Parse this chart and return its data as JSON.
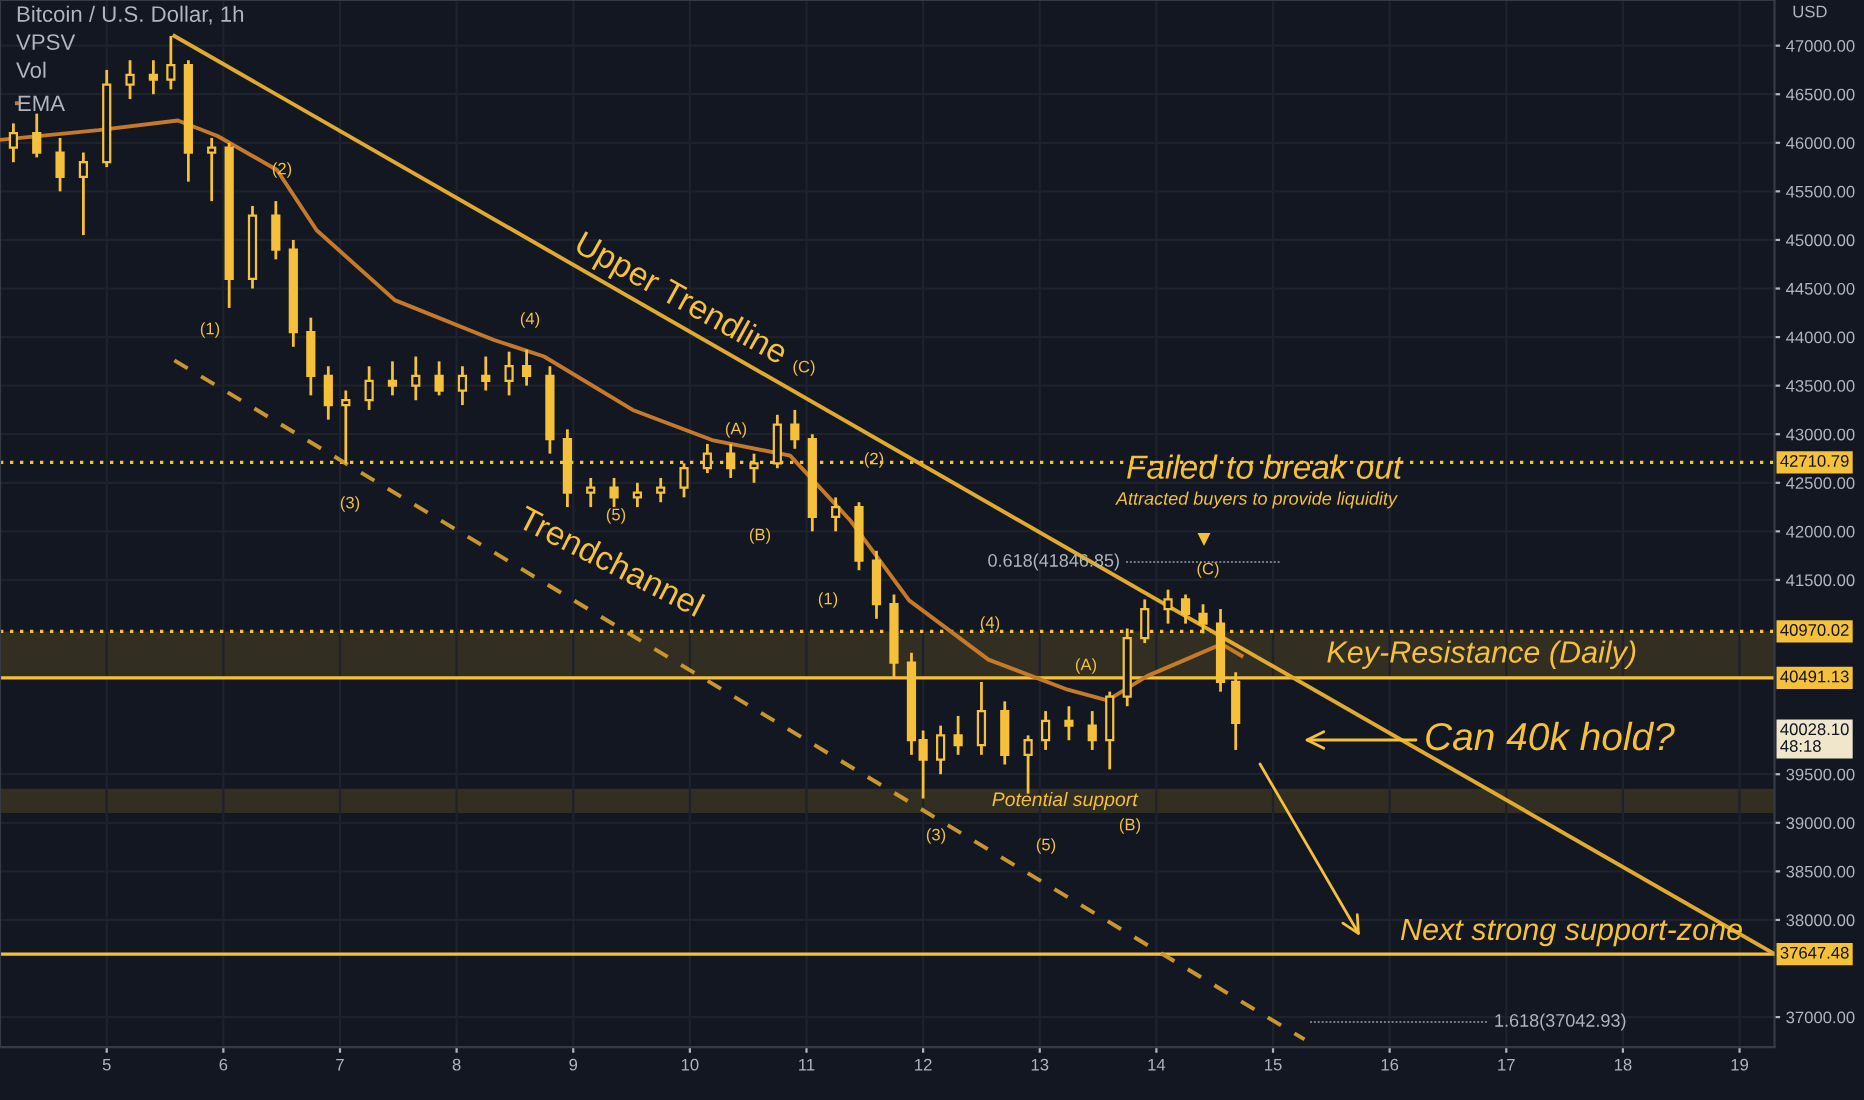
{
  "chart_data": {
    "type": "candlestick",
    "title": "Bitcoin / U.S. Dollar, 1h",
    "ylabel": "USD",
    "x": [
      4.2,
      4.4,
      4.6,
      4.8,
      5.0,
      5.2,
      5.4,
      5.55,
      5.7,
      5.9,
      6.05,
      6.25,
      6.45,
      6.6,
      6.75,
      6.9,
      7.05,
      7.25,
      7.45,
      7.65,
      7.85,
      8.05,
      8.25,
      8.45,
      8.6,
      8.8,
      8.95,
      9.15,
      9.35,
      9.55,
      9.75,
      9.95,
      10.15,
      10.35,
      10.55,
      10.75,
      10.9,
      11.05,
      11.25,
      11.45,
      11.6,
      11.75,
      11.9,
      12.0,
      12.15,
      12.3,
      12.5,
      12.7,
      12.9,
      13.05,
      13.25,
      13.45,
      13.6,
      13.75,
      13.9,
      14.1,
      14.25,
      14.4,
      14.55,
      14.68
    ],
    "ohlc": [
      [
        45950,
        46200,
        45800,
        46100
      ],
      [
        46100,
        46300,
        45850,
        45900
      ],
      [
        45900,
        46050,
        45500,
        45650
      ],
      [
        45650,
        45900,
        45050,
        45800
      ],
      [
        45800,
        46750,
        45750,
        46600
      ],
      [
        46600,
        46850,
        46450,
        46700
      ],
      [
        46700,
        46850,
        46500,
        46650
      ],
      [
        46650,
        47100,
        46550,
        46800
      ],
      [
        46800,
        46850,
        45600,
        45900
      ],
      [
        45900,
        46050,
        45400,
        45950
      ],
      [
        45950,
        46000,
        44300,
        44600
      ],
      [
        44600,
        45350,
        44500,
        45250
      ],
      [
        45250,
        45400,
        44800,
        44900
      ],
      [
        44900,
        45000,
        43900,
        44050
      ],
      [
        44050,
        44200,
        43400,
        43600
      ],
      [
        43600,
        43700,
        43150,
        43300
      ],
      [
        43300,
        43450,
        42700,
        43350
      ],
      [
        43350,
        43700,
        43250,
        43550
      ],
      [
        43550,
        43750,
        43400,
        43500
      ],
      [
        43500,
        43800,
        43350,
        43600
      ],
      [
        43600,
        43750,
        43400,
        43450
      ],
      [
        43450,
        43700,
        43300,
        43600
      ],
      [
        43600,
        43800,
        43450,
        43550
      ],
      [
        43550,
        43850,
        43400,
        43700
      ],
      [
        43700,
        43870,
        43500,
        43600
      ],
      [
        43600,
        43700,
        42800,
        42950
      ],
      [
        42950,
        43050,
        42250,
        42400
      ],
      [
        42400,
        42550,
        42250,
        42450
      ],
      [
        42450,
        42550,
        42250,
        42350
      ],
      [
        42350,
        42500,
        42250,
        42400
      ],
      [
        42400,
        42550,
        42300,
        42450
      ],
      [
        42450,
        42700,
        42350,
        42650
      ],
      [
        42650,
        42900,
        42600,
        42800
      ],
      [
        42800,
        42900,
        42550,
        42650
      ],
      [
        42650,
        42800,
        42500,
        42700
      ],
      [
        42700,
        43200,
        42650,
        43100
      ],
      [
        43100,
        43250,
        42850,
        42950
      ],
      [
        42950,
        43000,
        42000,
        42150
      ],
      [
        42150,
        42350,
        42000,
        42250
      ],
      [
        42250,
        42300,
        41600,
        41700
      ],
      [
        41700,
        41800,
        41100,
        41250
      ],
      [
        41250,
        41350,
        40500,
        40650
      ],
      [
        40650,
        40750,
        39700,
        39850
      ],
      [
        39850,
        39950,
        39250,
        39650
      ],
      [
        39650,
        40000,
        39500,
        39900
      ],
      [
        39900,
        40100,
        39700,
        39800
      ],
      [
        39800,
        40450,
        39700,
        40150
      ],
      [
        40150,
        40250,
        39600,
        39700
      ],
      [
        39700,
        39900,
        39300,
        39850
      ],
      [
        39850,
        40150,
        39750,
        40050
      ],
      [
        40050,
        40200,
        39850,
        40000
      ],
      [
        40000,
        40150,
        39750,
        39850
      ],
      [
        39850,
        40350,
        39550,
        40300
      ],
      [
        40300,
        41000,
        40200,
        40900
      ],
      [
        40900,
        41300,
        40850,
        41200
      ],
      [
        41200,
        41400,
        41050,
        41300
      ],
      [
        41300,
        41350,
        41050,
        41150
      ],
      [
        41150,
        41250,
        40950,
        41050
      ],
      [
        41050,
        41200,
        40350,
        40450
      ],
      [
        40450,
        40550,
        39750,
        40028.1
      ]
    ],
    "color": "#f5c03a",
    "series": [
      {
        "name": "EMA",
        "type": "line",
        "color": "#c57a2a",
        "x": [
          4.085,
          4.93,
          5.61,
          5.95,
          6.46,
          6.8,
          7.47,
          8.32,
          8.75,
          9.51,
          10.19,
          10.86,
          11.37,
          11.88,
          12.56,
          13.24,
          13.58,
          13.92,
          14.25,
          14.56,
          14.73
        ],
        "values": [
          46030,
          46130,
          46230,
          46070,
          45720,
          45100,
          44380,
          43970,
          43800,
          43250,
          42940,
          42780,
          42120,
          41290,
          40680,
          40370,
          40260,
          40510,
          40680,
          40840,
          40720
        ]
      },
      {
        "type": "line",
        "color": "#e0aa2e",
        "x": [
          5.58,
          19.3
        ],
        "values": [
          47100,
          37650
        ]
      },
      {
        "type": "line",
        "color": "#c9962c",
        "line_style": "dashed",
        "x": [
          5.58,
          15.27
        ],
        "values": [
          43760,
          36770
        ]
      }
    ],
    "xlim": [
      4.085,
      19.3
    ],
    "ylim": [
      36690,
      47470
    ],
    "xticks": [
      5,
      6,
      7,
      8,
      9,
      10,
      11,
      12,
      13,
      14,
      15,
      16,
      17,
      18,
      19
    ],
    "yticks": [
      {
        "value": 37000,
        "label": "37000.00"
      },
      {
        "value": 38000,
        "label": "38000.00"
      },
      {
        "value": 38500,
        "label": "38500.00"
      },
      {
        "value": 39000,
        "label": "39000.00"
      },
      {
        "value": 39500,
        "label": "39500.00"
      },
      {
        "value": 41500,
        "label": "41500.00"
      },
      {
        "value": 42000,
        "label": "42000.00"
      },
      {
        "value": 42500,
        "label": "42500.00"
      },
      {
        "value": 43000,
        "label": "43000.00"
      },
      {
        "value": 43500,
        "label": "43500.00"
      },
      {
        "value": 44000,
        "label": "44000.00"
      },
      {
        "value": 44500,
        "label": "44500.00"
      },
      {
        "value": 45000,
        "label": "45000.00"
      },
      {
        "value": 45500,
        "label": "45500.00"
      },
      {
        "value": 46000,
        "label": "46000.00"
      },
      {
        "value": 46500,
        "label": "46500.00"
      },
      {
        "value": 47000,
        "label": "47000.00"
      }
    ],
    "grid": true,
    "legend": "top left",
    "ref_lines": [
      {
        "axis": "y",
        "value": 42710.79,
        "label": "42710.79",
        "color": "#f5c03a",
        "line_style": "dotted"
      },
      {
        "axis": "y",
        "value": 40970.02,
        "label": "40970.02",
        "color": "#f5c03a",
        "line_style": "dotted"
      },
      {
        "axis": "y",
        "value": 40491.13,
        "label": "40491.13",
        "color": "#f5c03a",
        "line_style": "solid"
      },
      {
        "axis": "y",
        "value": 37647.48,
        "label": "37647.48",
        "color": "#f5c03a",
        "line_style": "solid"
      }
    ],
    "bands": [
      {
        "axis": "y",
        "from": 40491.13,
        "to": 40970.02,
        "label": "Key-Resistance (Daily)",
        "color": "#3a3222"
      },
      {
        "axis": "y",
        "from": 39100,
        "to": 39350,
        "label": "Potential support",
        "color": "#3a3222"
      }
    ],
    "annotations": [
      "VPSV",
      "Vol",
      "40028.10",
      "48:18",
      "Upper Trendline",
      "Trendchannel",
      "(1)",
      "(2)",
      "(3)",
      "(4)",
      "(5)",
      "(A)",
      "(B)",
      "(C)",
      "(1)",
      "(2)",
      "(3)",
      "(4)",
      "(5)",
      "(A)",
      "(B)",
      "(C)",
      "▼",
      "0.618(41846.85)",
      "1.618(37042.93)",
      "Failed to break out",
      "Attracted buyers to provide liquidity",
      "Can 40k hold?",
      "Next strong support-zone"
    ]
  }
}
